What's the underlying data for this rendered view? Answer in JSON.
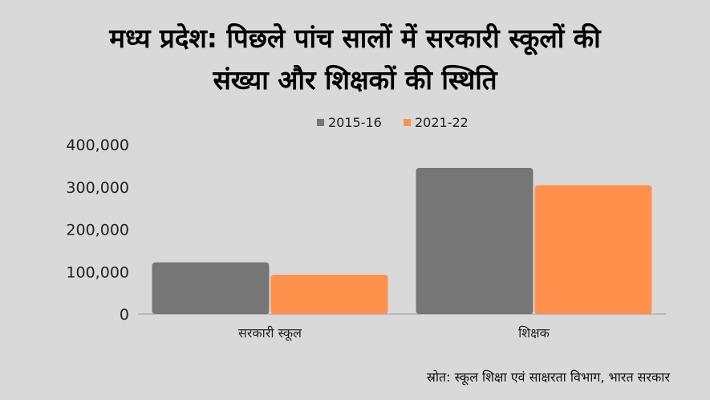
{
  "title": {
    "line1": "मध्य प्रदेश: पिछले पांच सालों में सरकारी स्कूलों की",
    "line2": "संख्या और शिक्षकों की स्थिति"
  },
  "source": "स्रोत: स्कूल शिक्षा एवं साक्षरता विभाग, भारत सरकार",
  "chart_data": {
    "type": "bar",
    "categories": [
      "सरकारी स्कूल",
      "शिक्षक"
    ],
    "series": [
      {
        "name": "2015-16",
        "color": "#767676",
        "values": [
          122000,
          345000
        ]
      },
      {
        "name": "2021-22",
        "color": "#ff914d",
        "values": [
          93000,
          304000
        ]
      }
    ],
    "ylim": [
      0,
      400000
    ],
    "yticks": [
      0,
      100000,
      200000,
      300000,
      400000
    ],
    "ytick_labels": [
      "0",
      "100,000",
      "200,000",
      "300,000",
      "400,000"
    ],
    "legend_position": "top",
    "grid": false
  }
}
